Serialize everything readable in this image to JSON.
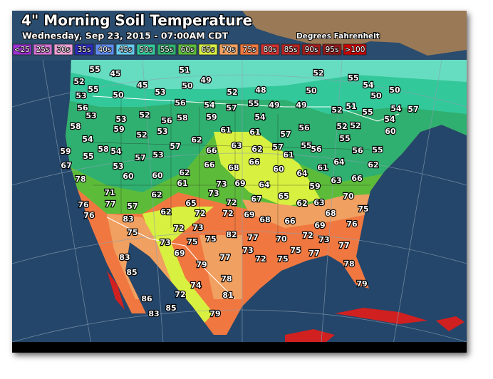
{
  "header": {
    "title": "4\" Morning Soil Temperature",
    "subtitle": "Wednesday, Sep 23, 2015 - 07:00AM CDT",
    "units": "Degrees Fahrenheit"
  },
  "legend": [
    {
      "label": "<25",
      "color": "#9b30d0"
    },
    {
      "label": "25s",
      "color": "#d070d0"
    },
    {
      "label": "30s",
      "color": "#f0a0d8"
    },
    {
      "label": "35s",
      "color": "#2c2cc0"
    },
    {
      "label": "40s",
      "color": "#5f8cf0"
    },
    {
      "label": "45s",
      "color": "#66ccf0"
    },
    {
      "label": "50s",
      "color": "#33c89a"
    },
    {
      "label": "55s",
      "color": "#2fb070"
    },
    {
      "label": "60s",
      "color": "#5cbc3a"
    },
    {
      "label": "65s",
      "color": "#d8f040"
    },
    {
      "label": "70s",
      "color": "#f0a060"
    },
    {
      "label": "75s",
      "color": "#f07840"
    },
    {
      "label": "80s",
      "color": "#d03030"
    },
    {
      "label": "85s",
      "color": "#b82424"
    },
    {
      "label": "90s",
      "color": "#a01c1c"
    },
    {
      "label": "95s",
      "color": "#901818"
    },
    {
      "label": ">100",
      "color": "#c80000"
    }
  ],
  "readings": [
    55,
    45,
    51,
    52,
    52,
    55,
    45,
    50,
    49,
    52,
    48,
    50,
    55,
    54,
    50,
    50,
    53,
    50,
    53,
    56,
    54,
    57,
    55,
    49,
    49,
    51,
    55,
    54,
    57,
    56,
    53,
    53,
    52,
    56,
    58,
    59,
    54,
    52,
    54,
    58,
    59,
    53,
    61,
    61,
    57,
    56,
    52,
    52,
    60,
    54,
    52,
    62,
    63,
    62,
    55,
    56,
    55,
    59,
    58,
    54,
    55,
    57,
    53,
    57,
    66,
    57,
    61,
    56,
    55,
    67,
    53,
    60,
    60,
    62,
    66,
    68,
    66,
    60,
    64,
    61,
    64,
    62,
    78,
    61,
    73,
    69,
    64,
    59,
    63,
    66,
    71,
    62,
    73,
    67,
    65,
    70,
    76,
    77,
    57,
    65,
    72,
    62,
    63,
    68,
    75,
    76,
    83,
    62,
    72,
    72,
    69,
    68,
    66,
    75,
    72,
    73,
    82,
    77,
    72,
    69,
    76,
    73,
    75,
    75,
    70,
    73,
    77,
    83,
    69,
    77,
    73,
    72,
    75,
    75,
    77,
    78,
    85,
    79,
    78,
    79,
    86,
    72,
    74,
    81,
    83,
    85,
    79
  ]
}
